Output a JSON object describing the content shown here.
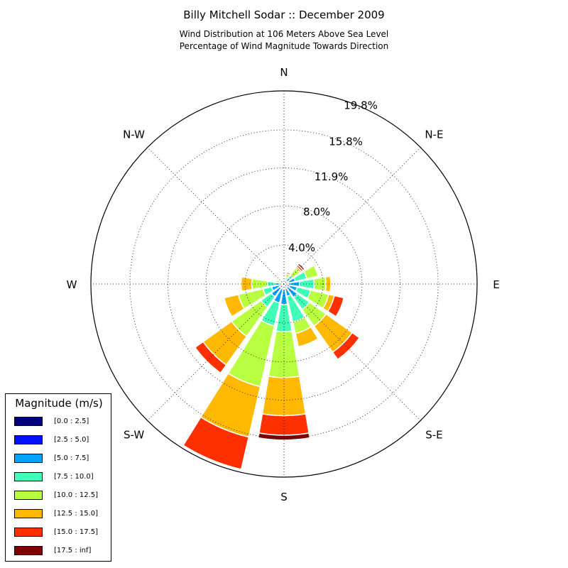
{
  "chart_data": {
    "type": "windrose",
    "title": "Billy Mitchell Sodar :: December 2009",
    "subtitle_lines": [
      "Wind Distribution at 106 Meters Above Sea Level",
      "Percentage of Wind Magnitude Towards Direction"
    ],
    "directions": [
      "N",
      "NNE",
      "NE",
      "ENE",
      "E",
      "ESE",
      "SE",
      "SSE",
      "S",
      "SSW",
      "SW",
      "WSW",
      "W",
      "WNW",
      "NW",
      "NNW"
    ],
    "direction_labels": [
      {
        "label": "N",
        "angle": 0
      },
      {
        "label": "N-E",
        "angle": 45
      },
      {
        "label": "E",
        "angle": 90
      },
      {
        "label": "S-E",
        "angle": 135
      },
      {
        "label": "S",
        "angle": 180
      },
      {
        "label": "S-W",
        "angle": 225
      },
      {
        "label": "W",
        "angle": 270
      },
      {
        "label": "N-W",
        "angle": 315
      }
    ],
    "radial_ticks": [
      4.0,
      8.0,
      11.9,
      15.8,
      19.8
    ],
    "radial_tick_labels": [
      "4.0%",
      "8.0%",
      "11.9%",
      "15.8%",
      "19.8%"
    ],
    "rmax": 19.8,
    "grid": true,
    "legend_title": "Magnitude (m/s)",
    "legend_position": "lower-left",
    "bins": [
      {
        "label": "[0.0 : 2.5]",
        "color": "#000080"
      },
      {
        "label": "[2.5 : 5.0]",
        "color": "#0010ff"
      },
      {
        "label": "[5.0 : 7.5]",
        "color": "#00a4ff"
      },
      {
        "label": "[7.5 : 10.0]",
        "color": "#40ffb7"
      },
      {
        "label": "[10.0 : 12.5]",
        "color": "#b7ff40"
      },
      {
        "label": "[12.5 : 15.0]",
        "color": "#ffb900"
      },
      {
        "label": "[15.0 : 17.5]",
        "color": "#ff3000"
      },
      {
        "label": "[17.5 : inf]",
        "color": "#800000"
      }
    ],
    "series": [
      {
        "direction": "N",
        "cumulative": [
          0.05,
          0.1,
          0.2,
          0.3,
          0.35,
          0.35,
          0.35,
          0.35
        ]
      },
      {
        "direction": "NNE",
        "cumulative": [
          0.1,
          0.3,
          0.5,
          0.7,
          1.1,
          1.1,
          1.1,
          1.25
        ]
      },
      {
        "direction": "NE",
        "cumulative": [
          0.1,
          0.4,
          0.8,
          1.1,
          2.0,
          2.2,
          2.4,
          2.6
        ]
      },
      {
        "direction": "ENE",
        "cumulative": [
          0.2,
          0.5,
          1.2,
          2.4,
          3.6,
          3.6,
          3.6,
          3.6
        ]
      },
      {
        "direction": "E",
        "cumulative": [
          0.2,
          0.5,
          1.6,
          3.1,
          4.3,
          4.8,
          4.8,
          4.8
        ]
      },
      {
        "direction": "ESE",
        "cumulative": [
          0.2,
          0.6,
          1.4,
          2.8,
          4.7,
          5.3,
          6.3,
          6.3
        ]
      },
      {
        "direction": "SE",
        "cumulative": [
          0.2,
          0.5,
          1.7,
          3.2,
          5.3,
          8.6,
          9.5,
          9.5
        ]
      },
      {
        "direction": "SSE",
        "cumulative": [
          0.2,
          0.5,
          1.3,
          4.0,
          5.2,
          6.6,
          6.6,
          6.6
        ]
      },
      {
        "direction": "S",
        "cumulative": [
          0.2,
          0.5,
          2.1,
          4.9,
          9.6,
          13.5,
          15.5,
          16.0
        ]
      },
      {
        "direction": "SSW",
        "cumulative": [
          0.2,
          0.5,
          2.0,
          4.4,
          10.8,
          16.1,
          19.5,
          19.5
        ]
      },
      {
        "direction": "SW",
        "cumulative": [
          0.2,
          0.5,
          1.6,
          2.9,
          6.6,
          10.2,
          11.2,
          11.2
        ]
      },
      {
        "direction": "WSW",
        "cumulative": [
          0.2,
          0.5,
          1.3,
          2.2,
          4.8,
          6.3,
          6.3,
          6.3
        ]
      },
      {
        "direction": "W",
        "cumulative": [
          0.1,
          0.3,
          0.9,
          1.7,
          3.3,
          4.4,
          4.4,
          4.4
        ]
      },
      {
        "direction": "WNW",
        "cumulative": [
          0.1,
          0.2,
          0.3,
          0.5,
          0.8,
          0.8,
          0.8,
          0.8
        ]
      },
      {
        "direction": "NW",
        "cumulative": [
          0.05,
          0.1,
          0.2,
          0.3,
          0.4,
          0.4,
          0.4,
          0.4
        ]
      },
      {
        "direction": "NNW",
        "cumulative": [
          0.05,
          0.1,
          0.15,
          0.2,
          0.2,
          0.2,
          0.2,
          0.2
        ]
      }
    ]
  }
}
